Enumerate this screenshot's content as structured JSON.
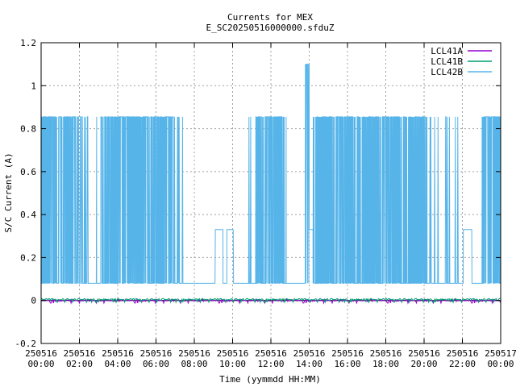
{
  "chart_data": {
    "type": "line",
    "title": "Currents for MEX",
    "subtitle": "E_SC20250516000000.sfduZ",
    "xlabel": "Time (yymmdd HH:MM)",
    "ylabel": "S/C Current (A)",
    "xlim": [
      0,
      24
    ],
    "ylim": [
      -0.2,
      1.2
    ],
    "y_ticks": [
      "-0.2",
      "0",
      "0.2",
      "0.4",
      "0.6",
      "0.8",
      "1",
      "1.2"
    ],
    "y_tick_values": [
      -0.2,
      0,
      0.2,
      0.4,
      0.6,
      0.8,
      1.0,
      1.2
    ],
    "x_ticks": [
      {
        "date": "250516",
        "time": "00:00",
        "hour": 0
      },
      {
        "date": "250516",
        "time": "02:00",
        "hour": 2
      },
      {
        "date": "250516",
        "time": "04:00",
        "hour": 4
      },
      {
        "date": "250516",
        "time": "06:00",
        "hour": 6
      },
      {
        "date": "250516",
        "time": "08:00",
        "hour": 8
      },
      {
        "date": "250516",
        "time": "10:00",
        "hour": 10
      },
      {
        "date": "250516",
        "time": "12:00",
        "hour": 12
      },
      {
        "date": "250516",
        "time": "14:00",
        "hour": 14
      },
      {
        "date": "250516",
        "time": "16:00",
        "hour": 16
      },
      {
        "date": "250516",
        "time": "18:00",
        "hour": 18
      },
      {
        "date": "250516",
        "time": "20:00",
        "hour": 20
      },
      {
        "date": "250516",
        "time": "22:00",
        "hour": 22
      },
      {
        "date": "250517",
        "time": "00:00",
        "hour": 24
      }
    ],
    "grid": true,
    "legend_position": "top-right",
    "series": [
      {
        "name": "LCL41A",
        "color": "#9400d3",
        "baseline": 0.0,
        "noise": 0.005,
        "spikes": {
          "low": -0.012,
          "density": 0.35
        }
      },
      {
        "name": "LCL41B",
        "color": "#009e73",
        "baseline": 0.005,
        "noise": 0.004,
        "spikes": {
          "low": -0.008,
          "density": 0.5
        }
      },
      {
        "name": "LCL42B",
        "color": "#56b4e9",
        "low": 0.08,
        "high": 0.855,
        "mid": 0.33,
        "peak": 1.1,
        "segments": [
          {
            "start": 0.0,
            "end": 1.8,
            "mode": "switch"
          },
          {
            "start": 1.8,
            "end": 2.9,
            "mode": "sparse"
          },
          {
            "start": 2.9,
            "end": 3.1,
            "mode": "low"
          },
          {
            "start": 3.1,
            "end": 4.1,
            "mode": "switch"
          },
          {
            "start": 4.1,
            "end": 6.9,
            "mode": "switch"
          },
          {
            "start": 6.9,
            "end": 7.5,
            "mode": "sparse"
          },
          {
            "start": 7.5,
            "end": 9.1,
            "mode": "low"
          },
          {
            "start": 9.1,
            "end": 9.5,
            "mode": "mid"
          },
          {
            "start": 9.5,
            "end": 9.7,
            "mode": "low"
          },
          {
            "start": 9.7,
            "end": 10.05,
            "mode": "mid"
          },
          {
            "start": 10.05,
            "end": 10.7,
            "mode": "low"
          },
          {
            "start": 10.7,
            "end": 11.2,
            "mode": "sparse"
          },
          {
            "start": 11.2,
            "end": 12.8,
            "mode": "switch"
          },
          {
            "start": 12.8,
            "end": 13.8,
            "mode": "low"
          },
          {
            "start": 13.8,
            "end": 14.0,
            "mode": "peak"
          },
          {
            "start": 14.0,
            "end": 14.2,
            "mode": "mid"
          },
          {
            "start": 14.2,
            "end": 20.2,
            "mode": "switch"
          },
          {
            "start": 20.2,
            "end": 21.8,
            "mode": "sparse"
          },
          {
            "start": 21.8,
            "end": 22.05,
            "mode": "low"
          },
          {
            "start": 22.05,
            "end": 22.5,
            "mode": "mid"
          },
          {
            "start": 22.5,
            "end": 23.0,
            "mode": "low"
          },
          {
            "start": 23.0,
            "end": 24.0,
            "mode": "switch"
          }
        ]
      }
    ]
  }
}
